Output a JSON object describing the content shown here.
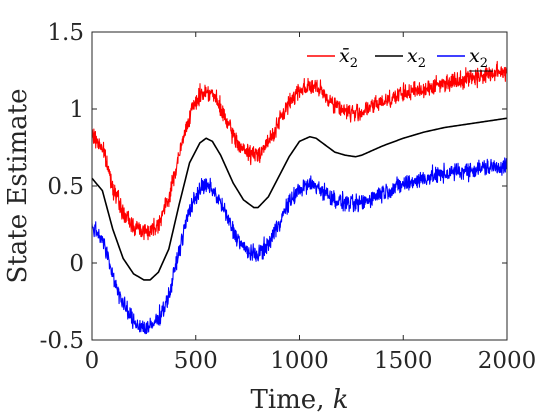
{
  "chart_data": {
    "type": "line",
    "xlabel": "Time, ",
    "xlabel_var": "k",
    "ylabel": "State Estimate",
    "xlim": [
      0,
      2000
    ],
    "ylim": [
      -0.5,
      1.5
    ],
    "xticks": [
      0,
      500,
      1000,
      1500,
      2000
    ],
    "yticks": [
      -0.5,
      0,
      0.5,
      1,
      1.5
    ],
    "ytick_labels": [
      "-0.5",
      "0",
      "0.5",
      "1",
      "1.5"
    ],
    "grid": false,
    "legend_position": "top-right",
    "x": [
      0,
      50,
      100,
      150,
      200,
      250,
      280,
      320,
      370,
      420,
      470,
      520,
      550,
      580,
      620,
      680,
      730,
      780,
      800,
      850,
      900,
      950,
      1000,
      1050,
      1080,
      1120,
      1170,
      1220,
      1270,
      1300,
      1400,
      1500,
      1600,
      1700,
      1800,
      1900,
      2000
    ],
    "series": [
      {
        "name": "x̄",
        "subscript": "2",
        "color": "#ff0000",
        "noise": 0.035,
        "values": [
          0.83,
          0.75,
          0.5,
          0.32,
          0.24,
          0.21,
          0.21,
          0.26,
          0.42,
          0.7,
          0.96,
          1.09,
          1.12,
          1.1,
          1.0,
          0.83,
          0.73,
          0.7,
          0.71,
          0.78,
          0.91,
          1.04,
          1.13,
          1.15,
          1.14,
          1.09,
          1.03,
          0.99,
          0.97,
          0.98,
          1.05,
          1.1,
          1.13,
          1.17,
          1.2,
          1.22,
          1.25
        ]
      },
      {
        "name": "x",
        "subscript": "2",
        "color": "#000000",
        "noise": 0.0,
        "values": [
          0.55,
          0.47,
          0.22,
          0.03,
          -0.07,
          -0.11,
          -0.11,
          -0.06,
          0.09,
          0.38,
          0.65,
          0.78,
          0.81,
          0.79,
          0.7,
          0.52,
          0.41,
          0.36,
          0.36,
          0.43,
          0.56,
          0.69,
          0.79,
          0.82,
          0.81,
          0.77,
          0.72,
          0.7,
          0.69,
          0.7,
          0.76,
          0.81,
          0.85,
          0.88,
          0.9,
          0.92,
          0.94
        ]
      },
      {
        "name": "x",
        "subscript": "2",
        "underline": true,
        "color": "#0000ff",
        "noise": 0.035,
        "values": [
          0.24,
          0.16,
          -0.08,
          -0.27,
          -0.38,
          -0.42,
          -0.42,
          -0.36,
          -0.22,
          0.08,
          0.35,
          0.48,
          0.5,
          0.48,
          0.39,
          0.21,
          0.1,
          0.05,
          0.06,
          0.12,
          0.26,
          0.39,
          0.48,
          0.51,
          0.5,
          0.46,
          0.41,
          0.39,
          0.38,
          0.39,
          0.46,
          0.51,
          0.55,
          0.58,
          0.6,
          0.62,
          0.63
        ]
      }
    ]
  }
}
